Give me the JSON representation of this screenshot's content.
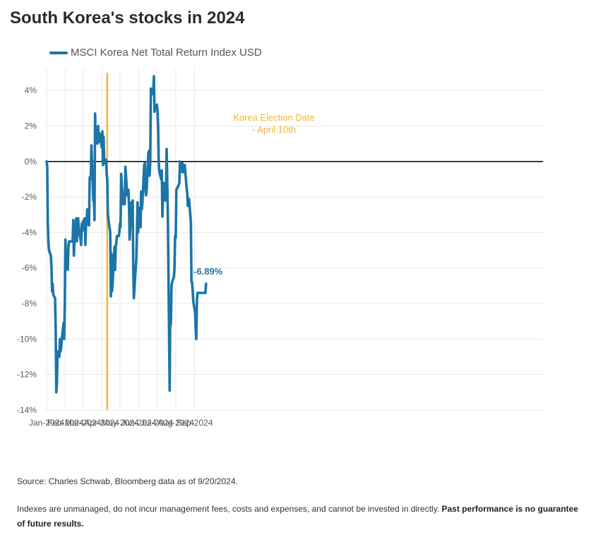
{
  "title": "South Korea's stocks in 2024",
  "colors": {
    "series": "#1b75a8",
    "annotation": "#f4b533",
    "zero_line": "#111111",
    "grid": "#e8e8e8"
  },
  "chart_data": {
    "type": "line",
    "ylim": [
      -14,
      5
    ],
    "y_ticks": [
      4,
      2,
      0,
      -2,
      -4,
      -6,
      -8,
      -10,
      -12,
      -14
    ],
    "y_tick_labels": [
      "4%",
      "2%",
      "0%",
      "-2%",
      "-4%",
      "-6%",
      "-8%",
      "-10%",
      "-12%",
      "-14%"
    ],
    "x_ticks": [
      "Jan-2024",
      "Feb-2024",
      "Mar-2024",
      "Apr-2024",
      "May-2024",
      "Jun-2024",
      "Jul-2024",
      "Aug-2024",
      "Sep-2024"
    ],
    "grid": true,
    "legend_position": "top-left",
    "series": [
      {
        "name": "MSCI Korea Net Total Return Index USD",
        "values": [
          [
            "2024-01-01",
            0
          ],
          [
            "2024-01-02",
            -0.3
          ],
          [
            "2024-01-03",
            -3.4
          ],
          [
            "2024-01-04",
            -4.6
          ],
          [
            "2024-01-05",
            -5.0
          ],
          [
            "2024-01-08",
            -5.3
          ],
          [
            "2024-01-09",
            -5.9
          ],
          [
            "2024-01-10",
            -7.3
          ],
          [
            "2024-01-11",
            -6.9
          ],
          [
            "2024-01-12",
            -7.5
          ],
          [
            "2024-01-15",
            -7.7
          ],
          [
            "2024-01-16",
            -9.5
          ],
          [
            "2024-01-17",
            -13.0
          ],
          [
            "2024-01-18",
            -12.5
          ],
          [
            "2024-01-19",
            -10.7
          ],
          [
            "2024-01-22",
            -11.0
          ],
          [
            "2024-01-23",
            -10.0
          ],
          [
            "2024-01-24",
            -10.7
          ],
          [
            "2024-01-25",
            -10.5
          ],
          [
            "2024-01-26",
            -10.0
          ],
          [
            "2024-01-29",
            -9.1
          ],
          [
            "2024-01-30",
            -10.0
          ],
          [
            "2024-01-31",
            -8.0
          ],
          [
            "2024-02-01",
            -4.4
          ],
          [
            "2024-02-02",
            -5.3
          ],
          [
            "2024-02-05",
            -6.1
          ],
          [
            "2024-02-06",
            -4.8
          ],
          [
            "2024-02-07",
            -4.5
          ],
          [
            "2024-02-08",
            -4.5
          ],
          [
            "2024-02-13",
            -4.5
          ],
          [
            "2024-02-14",
            -3.3
          ],
          [
            "2024-02-15",
            -5.3
          ],
          [
            "2024-02-16",
            -4.5
          ],
          [
            "2024-02-19",
            -3.2
          ],
          [
            "2024-02-20",
            -4.5
          ],
          [
            "2024-02-21",
            -4.0
          ],
          [
            "2024-02-22",
            -3.2
          ],
          [
            "2024-02-23",
            -3.7
          ],
          [
            "2024-02-26",
            -4.4
          ],
          [
            "2024-02-27",
            -4.7
          ],
          [
            "2024-02-28",
            -3.5
          ],
          [
            "2024-02-29",
            -3.9
          ],
          [
            "2024-03-01",
            -3.4
          ],
          [
            "2024-03-04",
            -3.2
          ],
          [
            "2024-03-05",
            -4.7
          ],
          [
            "2024-03-06",
            -3.6
          ],
          [
            "2024-03-07",
            -3.5
          ],
          [
            "2024-03-08",
            -2.7
          ],
          [
            "2024-03-11",
            -3.6
          ],
          [
            "2024-03-12",
            -0.9
          ],
          [
            "2024-03-13",
            -1.0
          ],
          [
            "2024-03-14",
            -0.7
          ],
          [
            "2024-03-15",
            0.9
          ],
          [
            "2024-03-18",
            -2.2
          ],
          [
            "2024-03-19",
            -2.0
          ],
          [
            "2024-03-20",
            -3.3
          ],
          [
            "2024-03-21",
            2.7
          ],
          [
            "2024-03-22",
            1.3
          ],
          [
            "2024-03-25",
            1.0
          ],
          [
            "2024-03-26",
            2.0
          ],
          [
            "2024-03-27",
            1.1
          ],
          [
            "2024-03-28",
            1.6
          ],
          [
            "2024-03-29",
            1.5
          ],
          [
            "2024-04-01",
            0.8
          ],
          [
            "2024-04-02",
            1.7
          ],
          [
            "2024-04-03",
            -0.2
          ],
          [
            "2024-04-04",
            1.4
          ],
          [
            "2024-04-05",
            -0.1
          ],
          [
            "2024-04-08",
            0.1
          ],
          [
            "2024-04-09",
            -0.7
          ],
          [
            "2024-04-10",
            -1.0
          ],
          [
            "2024-04-11",
            -2.9
          ],
          [
            "2024-04-12",
            -3.3
          ],
          [
            "2024-04-15",
            -4.0
          ],
          [
            "2024-04-16",
            -7.6
          ],
          [
            "2024-04-17",
            -5.2
          ],
          [
            "2024-04-18",
            -7.3
          ],
          [
            "2024-04-19",
            -6.8
          ],
          [
            "2024-04-22",
            -4.8
          ],
          [
            "2024-04-23",
            -6.1
          ],
          [
            "2024-04-24",
            -4.8
          ],
          [
            "2024-04-25",
            -4.6
          ],
          [
            "2024-04-26",
            -4.2
          ],
          [
            "2024-04-29",
            -4.2
          ],
          [
            "2024-04-30",
            -4.0
          ],
          [
            "2024-05-01",
            -3.5
          ],
          [
            "2024-05-02",
            -3.7
          ],
          [
            "2024-05-03",
            -0.7
          ],
          [
            "2024-05-06",
            -2.4
          ],
          [
            "2024-05-07",
            -2.3
          ],
          [
            "2024-05-08",
            -2.4
          ],
          [
            "2024-05-09",
            -2.4
          ],
          [
            "2024-05-10",
            -0.3
          ],
          [
            "2024-05-13",
            -1.9
          ],
          [
            "2024-05-14",
            -1.6
          ],
          [
            "2024-05-15",
            -1.6
          ],
          [
            "2024-05-16",
            -2.6
          ],
          [
            "2024-05-17",
            -4.4
          ],
          [
            "2024-05-20",
            -2.3
          ],
          [
            "2024-05-21",
            -3.2
          ],
          [
            "2024-05-22",
            -2.2
          ],
          [
            "2024-05-23",
            -6.2
          ],
          [
            "2024-05-24",
            -7.7
          ],
          [
            "2024-05-27",
            -6.0
          ],
          [
            "2024-05-28",
            -5.5
          ],
          [
            "2024-05-29",
            -3.9
          ],
          [
            "2024-05-30",
            -2.3
          ],
          [
            "2024-05-31",
            -4.0
          ],
          [
            "2024-06-03",
            -2.6
          ],
          [
            "2024-06-04",
            -3.7
          ],
          [
            "2024-06-05",
            -1.7
          ],
          [
            "2024-06-06",
            -2.7
          ],
          [
            "2024-06-07",
            -2.4
          ],
          [
            "2024-06-10",
            -0.2
          ],
          [
            "2024-06-11",
            -0.1
          ],
          [
            "2024-06-12",
            -1.4
          ],
          [
            "2024-06-13",
            -1.9
          ],
          [
            "2024-06-14",
            -1.6
          ],
          [
            "2024-06-17",
            0.5
          ],
          [
            "2024-06-18",
            0.6
          ],
          [
            "2024-06-19",
            -0.8
          ],
          [
            "2024-06-20",
            0.0
          ],
          [
            "2024-06-21",
            4.1
          ],
          [
            "2024-06-24",
            3.8
          ],
          [
            "2024-06-25",
            4.1
          ],
          [
            "2024-06-26",
            4.8
          ],
          [
            "2024-06-27",
            2.8
          ],
          [
            "2024-06-28",
            3.1
          ],
          [
            "2024-07-01",
            3.2
          ],
          [
            "2024-07-02",
            2.8
          ],
          [
            "2024-07-03",
            1.9
          ],
          [
            "2024-07-04",
            0.0
          ],
          [
            "2024-07-05",
            -0.6
          ],
          [
            "2024-07-08",
            -1.0
          ],
          [
            "2024-07-09",
            -0.5
          ],
          [
            "2024-07-10",
            -3.1
          ],
          [
            "2024-07-11",
            -2.2
          ],
          [
            "2024-07-12",
            -1.2
          ],
          [
            "2024-07-15",
            -2.2
          ],
          [
            "2024-07-16",
            -2.0
          ],
          [
            "2024-07-17",
            0.7
          ],
          [
            "2024-07-18",
            -1.0
          ],
          [
            "2024-07-19",
            -3.0
          ],
          [
            "2024-07-22",
            -12.9
          ],
          [
            "2024-07-23",
            -8.3
          ],
          [
            "2024-07-24",
            -9.2
          ],
          [
            "2024-07-25",
            -7.0
          ],
          [
            "2024-07-26",
            -6.8
          ],
          [
            "2024-07-29",
            -6.5
          ],
          [
            "2024-07-30",
            -6.0
          ],
          [
            "2024-07-31",
            -4.2
          ],
          [
            "2024-08-01",
            -4.3
          ],
          [
            "2024-08-02",
            -1.6
          ],
          [
            "2024-08-05",
            -1.4
          ],
          [
            "2024-08-06",
            -1.3
          ],
          [
            "2024-08-07",
            -1.2
          ],
          [
            "2024-08-08",
            0.0
          ],
          [
            "2024-08-09",
            -0.6
          ],
          [
            "2024-08-12",
            -0.1
          ],
          [
            "2024-08-13",
            -0.6
          ],
          [
            "2024-08-14",
            -0.4
          ],
          [
            "2024-08-15",
            -0.5
          ],
          [
            "2024-08-16",
            -0.2
          ],
          [
            "2024-08-19",
            -1.5
          ],
          [
            "2024-08-20",
            -1.8
          ],
          [
            "2024-08-21",
            -2.5
          ],
          [
            "2024-08-22",
            -2.2
          ],
          [
            "2024-08-23",
            -2.1
          ],
          [
            "2024-08-26",
            -3.4
          ],
          [
            "2024-08-27",
            -6.8
          ],
          [
            "2024-08-28",
            -6.8
          ],
          [
            "2024-08-29",
            -7.3
          ],
          [
            "2024-08-30",
            -7.9
          ],
          [
            "2024-09-02",
            -8.5
          ],
          [
            "2024-09-03",
            -9.4
          ],
          [
            "2024-09-04",
            -10.0
          ],
          [
            "2024-09-05",
            -7.8
          ],
          [
            "2024-09-06",
            -7.4
          ],
          [
            "2024-09-09",
            -7.4
          ],
          [
            "2024-09-10",
            -7.4
          ],
          [
            "2024-09-11",
            -7.4
          ],
          [
            "2024-09-12",
            -7.4
          ],
          [
            "2024-09-13",
            -7.4
          ],
          [
            "2024-09-16",
            -7.4
          ],
          [
            "2024-09-19",
            -7.4
          ],
          [
            "2024-09-20",
            -6.89
          ]
        ]
      }
    ],
    "annotations": [
      {
        "date": "2024-04-10",
        "label_line1": "Korea Election Date",
        "label_line2": "- April 10th"
      }
    ],
    "end_label": "-6.89%"
  },
  "source": "Source: Charles Schwab, Bloomberg data as of 9/20/2024.",
  "disclaimer_plain": "Indexes are unmanaged, do not incur management fees, costs and expenses, and cannot be invested in directly. ",
  "disclaimer_bold": "Past performance is no guarantee of future results."
}
